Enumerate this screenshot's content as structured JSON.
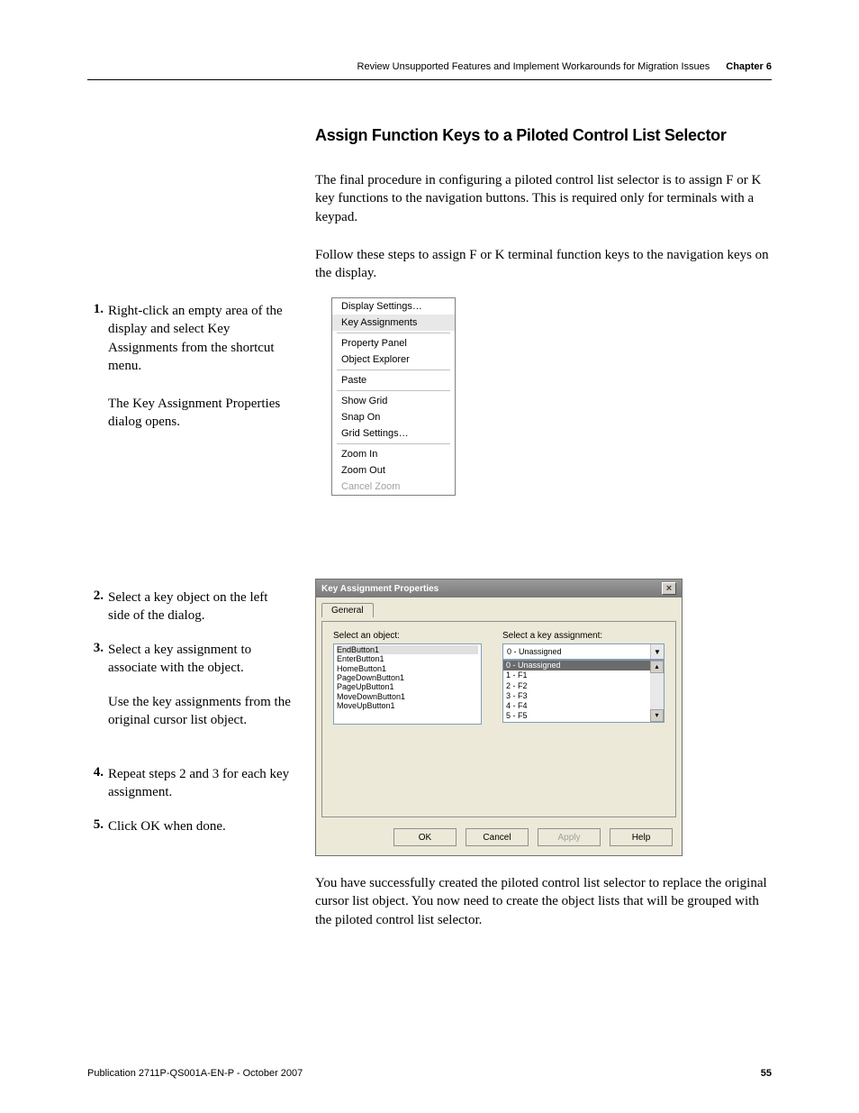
{
  "header": {
    "breadcrumb": "Review Unsupported Features and Implement Workarounds for Migration Issues",
    "chapter": "Chapter 6"
  },
  "title": "Assign Function Keys to a Piloted Control List Selector",
  "intro1": "The final procedure in configuring a piloted control list selector is to assign F or K key functions to the navigation buttons. This is required only for terminals with a keypad.",
  "intro2": "Follow these steps to assign F or K terminal function keys to the navigation keys on the display.",
  "steps": {
    "n1": "1.",
    "t1": "Right-click an empty area of the display and select Key Assignments from the shortcut menu.",
    "t1b": "The Key Assignment Properties dialog opens.",
    "n2": "2.",
    "t2": "Select a key object on the left side of the dialog.",
    "n3": "3.",
    "t3": "Select a key assignment to associate with the object.",
    "t3b": "Use the key assignments from the original cursor list object.",
    "n4": "4.",
    "t4": "Repeat steps 2 and 3 for each key assignment.",
    "n5": "5.",
    "t5": "Click OK when done."
  },
  "context_menu": {
    "items": [
      "Display Settings…",
      "Key Assignments",
      "Property Panel",
      "Object Explorer",
      "Paste",
      "Show Grid",
      "Snap On",
      "Grid Settings…",
      "Zoom In",
      "Zoom Out",
      "Cancel Zoom"
    ]
  },
  "dialog": {
    "title": "Key Assignment Properties",
    "tab": "General",
    "select_object_label": "Select an object:",
    "select_key_label": "Select a key assignment:",
    "objects": [
      "EndButton1",
      "EnterButton1",
      "HomeButton1",
      "PageDownButton1",
      "PageUpButton1",
      "MoveDownButton1",
      "MoveUpButton1"
    ],
    "combo_value": "0 - Unassigned",
    "dropdown": [
      "0 - Unassigned",
      "1 - F1",
      "2 - F2",
      "3 - F3",
      "4 - F4",
      "5 - F5"
    ],
    "buttons": {
      "ok": "OK",
      "cancel": "Cancel",
      "apply": "Apply",
      "help": "Help"
    }
  },
  "closing": "You have successfully created the piloted control list selector to replace the original cursor list object. You now need to create the object lists that will be grouped with the piloted control list selector.",
  "footer": {
    "publication": "Publication 2711P-QS001A-EN-P - October 2007",
    "page": "55"
  }
}
